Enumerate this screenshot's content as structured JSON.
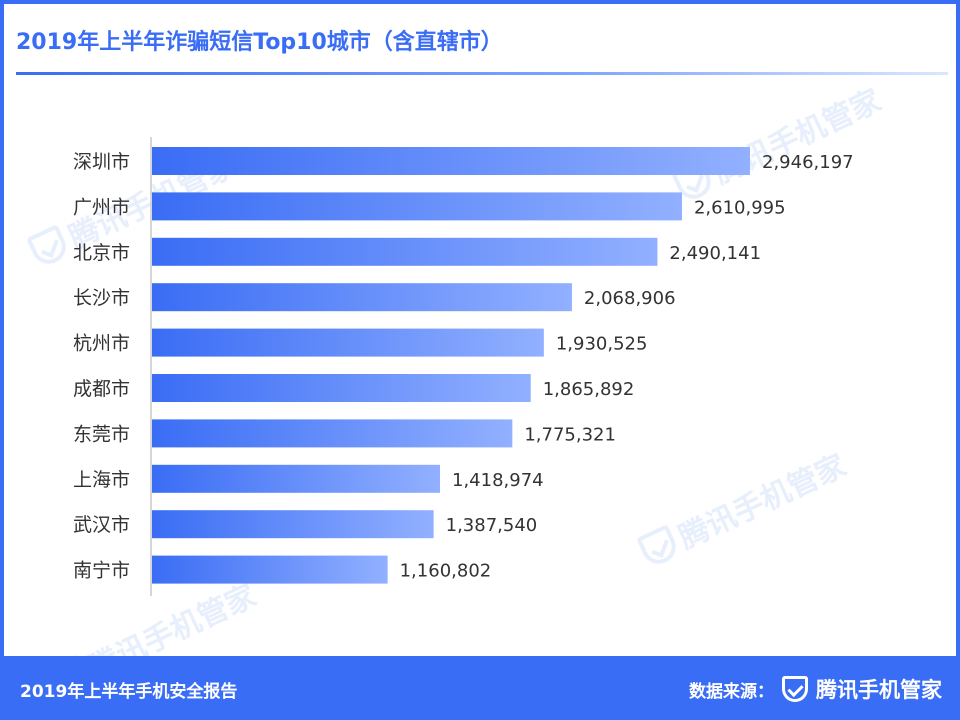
{
  "title": "2019年上半年诈骗短信Top10城市（含直辖市）",
  "watermark": "腾讯手机管家",
  "footer": {
    "report": "2019年上半年手机安全报告",
    "source_label": "数据来源：",
    "brand": "腾讯手机管家"
  },
  "colors": {
    "frame": "#3a6df5",
    "bar_start": "#3a6df5",
    "bar_end": "#92b0ff",
    "axis": "#c9c9c9",
    "label": "#333333"
  },
  "chart_data": {
    "type": "bar",
    "orientation": "horizontal",
    "categories": [
      "深圳市",
      "广州市",
      "北京市",
      "长沙市",
      "杭州市",
      "成都市",
      "东莞市",
      "上海市",
      "武汉市",
      "南宁市"
    ],
    "values": [
      2946197,
      2610995,
      2490141,
      2068906,
      1930525,
      1865892,
      1775321,
      1418974,
      1387540,
      1160802
    ],
    "value_labels": [
      "2,946,197",
      "2,610,995",
      "2,490,141",
      "2,068,906",
      "1,930,525",
      "1,865,892",
      "1,775,321",
      "1,418,974",
      "1,387,540",
      "1,160,802"
    ],
    "xlim": [
      0,
      2946197
    ],
    "grid": false,
    "legend": "none"
  }
}
